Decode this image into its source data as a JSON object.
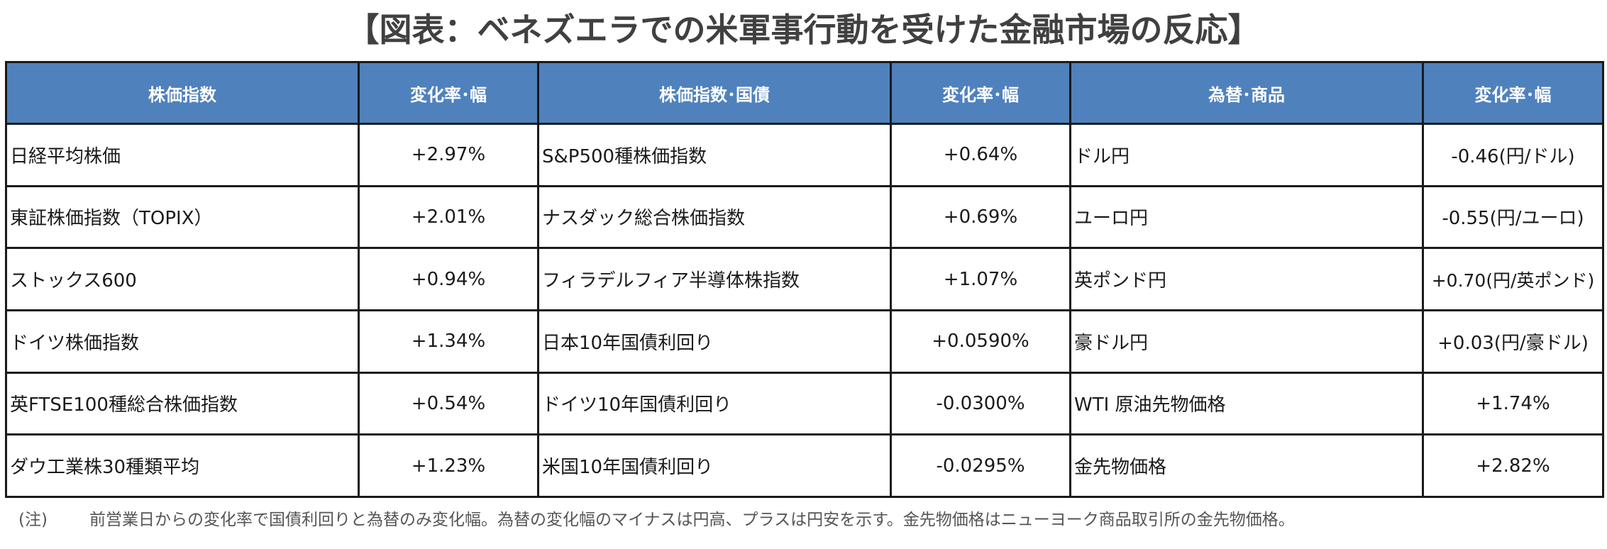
{
  "title": "【図表：ベネズエラでの米軍事行動を受けた金融市場の反応】",
  "table": {
    "headers": [
      "株価指数",
      "変化率･幅",
      "株価指数･国債",
      "変化率･幅",
      "為替･商品",
      "変化率･幅"
    ],
    "rows": [
      [
        "日経平均株価",
        "+2.97%",
        "S&P500種株価指数",
        "+0.64%",
        "ドル円",
        "-0.46(円/ドル)"
      ],
      [
        "東証株価指数（TOPIX）",
        "+2.01%",
        "ナスダック総合株価指数",
        "+0.69%",
        "ユーロ円",
        "-0.55(円/ユーロ)"
      ],
      [
        "ストックス600",
        "+0.94%",
        "フィラデルフィア半導体株指数",
        "+1.07%",
        "英ポンド円",
        "+0.70(円/英ポンド)"
      ],
      [
        "ドイツ株価指数",
        "+1.34%",
        "日本10年国債利回り",
        "+0.0590%",
        "豪ドル円",
        "+0.03(円/豪ドル)"
      ],
      [
        "英FTSE100種総合株価指数",
        "+0.54%",
        "ドイツ10年国債利回り",
        "-0.0300%",
        "WTI 原油先物価格",
        "+1.74%"
      ],
      [
        "ダウ工業株30種類平均",
        "+1.23%",
        "米国10年国債利回り",
        "-0.0295%",
        "金先物価格",
        "+2.82%"
      ]
    ]
  },
  "footnote": {
    "marker": "(注)",
    "text": "前営業日からの変化率で国債利回りと為替のみ変化幅。為替の変化幅のマイナスは円高、プラスは円安を示す。金先物価格はニューヨーク商品取引所の金先物価格。"
  },
  "colors": {
    "header_bg": "#4f81bd",
    "header_text": "#ffffff",
    "border": "#1a1a1a",
    "title_text": "#404040"
  }
}
